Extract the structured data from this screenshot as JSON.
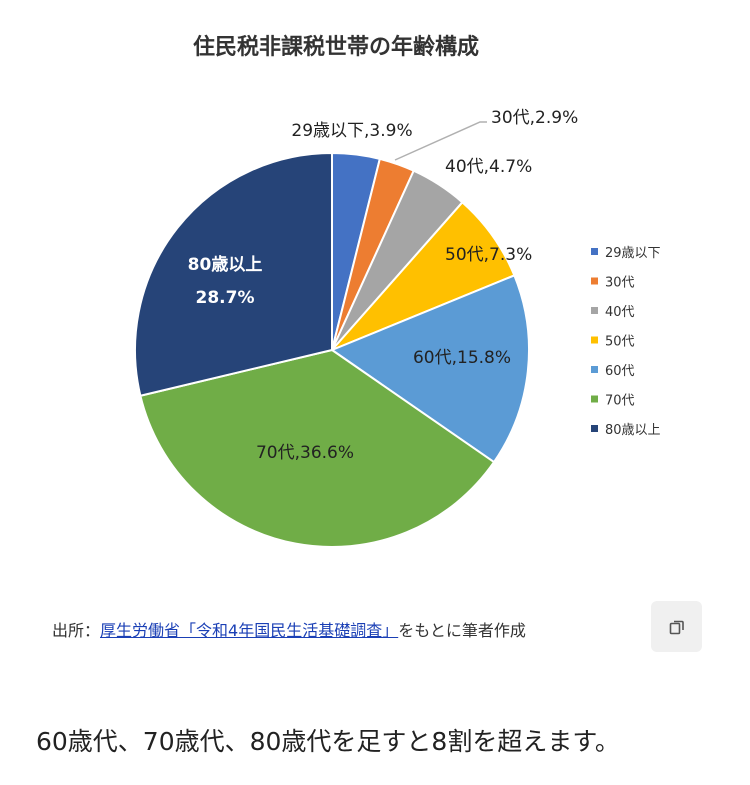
{
  "chart_data": {
    "type": "pie",
    "title": "住民税非課税世帯の年齢構成",
    "categories": [
      "29歳以下",
      "30代",
      "40代",
      "50代",
      "60代",
      "70代",
      "80歳以上"
    ],
    "values": [
      3.9,
      2.9,
      4.7,
      7.3,
      15.8,
      36.6,
      28.7
    ],
    "colors": [
      "#4472c4",
      "#ed7d31",
      "#a5a5a5",
      "#ffc000",
      "#5b9bd5",
      "#70ad47",
      "#264478"
    ],
    "data_labels": [
      "29歳以下,3.9%",
      "30代,2.9%",
      "40代,4.7%",
      "50代,7.3%",
      "60代,15.8%",
      "70代,36.6%",
      [
        "80歳以上",
        "28.7%"
      ]
    ],
    "legend_position": "right"
  },
  "caption": {
    "prefix": "出所：",
    "link": "厚生労働省「令和4年国民生活基礎調査」",
    "suffix": "をもとに筆者作成"
  },
  "copy_icon": "copy-icon",
  "body_text": "60歳代、70歳代、80歳代を足すと8割を超えます。"
}
